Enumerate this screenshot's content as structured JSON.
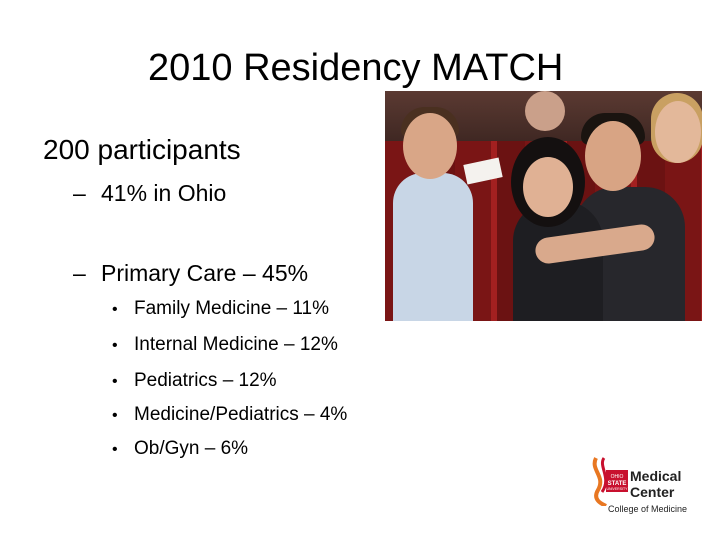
{
  "slide": {
    "title": "2010 Residency MATCH",
    "main_point": "200 participants",
    "sub_points": [
      {
        "dash": "–",
        "text": "41% in Ohio"
      },
      {
        "dash": "–",
        "text": "Primary Care – 45%"
      }
    ],
    "bullet_char": "•",
    "bullets": [
      "Family Medicine – 11%",
      "Internal Medicine – 12%",
      "Pediatrics – 12%",
      "Medicine/Pediatrics – 4%",
      "Ob/Gyn – 6%"
    ]
  },
  "logo": {
    "line1": "Medical",
    "line2": "Center",
    "line3": "College of Medicine",
    "badge_line1": "OHIO",
    "badge_line2": "STATE",
    "badge_line3": "UNIVERSITY",
    "colors": {
      "red": "#c8102e",
      "orange": "#e87722",
      "gray": "#666666"
    }
  }
}
